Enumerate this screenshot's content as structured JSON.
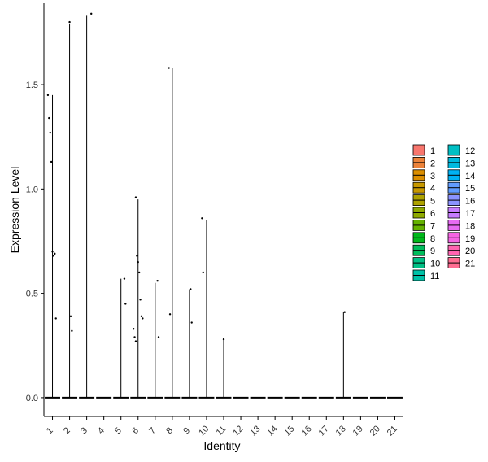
{
  "chart_data": {
    "type": "violin",
    "xlabel": "Identity",
    "ylabel": "Expression Level",
    "categories": [
      "1",
      "2",
      "3",
      "4",
      "5",
      "6",
      "7",
      "8",
      "9",
      "10",
      "11",
      "12",
      "13",
      "14",
      "15",
      "16",
      "17",
      "18",
      "19",
      "20",
      "21"
    ],
    "ylim": [
      -0.09,
      1.89
    ],
    "yticks": [
      0.0,
      0.5,
      1.0,
      1.5
    ],
    "ytick_labels": [
      "0.0",
      "0.5",
      "1.0",
      "1.5"
    ],
    "grid": false,
    "legend_position": "right",
    "legend": [
      {
        "label": "1",
        "color": "#F8766D"
      },
      {
        "label": "2",
        "color": "#EC8239"
      },
      {
        "label": "3",
        "color": "#DB8E00"
      },
      {
        "label": "4",
        "color": "#C79800"
      },
      {
        "label": "5",
        "color": "#AEA200"
      },
      {
        "label": "6",
        "color": "#8FAA00"
      },
      {
        "label": "7",
        "color": "#64B200"
      },
      {
        "label": "8",
        "color": "#00B81B"
      },
      {
        "label": "9",
        "color": "#00BD5C"
      },
      {
        "label": "10",
        "color": "#00C085"
      },
      {
        "label": "11",
        "color": "#00C1A7"
      },
      {
        "label": "12",
        "color": "#00BFC4"
      },
      {
        "label": "13",
        "color": "#00BADE"
      },
      {
        "label": "14",
        "color": "#00B2F3"
      },
      {
        "label": "15",
        "color": "#619CFF"
      },
      {
        "label": "16",
        "color": "#8B93FF"
      },
      {
        "label": "17",
        "color": "#C77CFF"
      },
      {
        "label": "18",
        "color": "#E76BF3"
      },
      {
        "label": "19",
        "color": "#F564E3"
      },
      {
        "label": "20",
        "color": "#FF64B0"
      },
      {
        "label": "21",
        "color": "#FF6C91"
      }
    ],
    "series": [
      {
        "category": "1",
        "max": 1.45,
        "points": [
          1.45,
          1.34,
          1.27,
          1.13,
          0.7,
          0.68,
          0.69,
          0.38
        ]
      },
      {
        "category": "2",
        "max": 1.79,
        "points": [
          1.8,
          0.39,
          0.32
        ]
      },
      {
        "category": "3",
        "max": 1.83,
        "points": [
          1.84
        ]
      },
      {
        "category": "4",
        "max": 0,
        "points": []
      },
      {
        "category": "5",
        "max": 0.57,
        "points": [
          0.57,
          0.45
        ]
      },
      {
        "category": "6",
        "max": 0.95,
        "points": [
          0.96,
          0.68,
          0.65,
          0.6,
          0.47,
          0.39,
          0.38,
          0.33,
          0.29,
          0.27
        ]
      },
      {
        "category": "7",
        "max": 0.55,
        "points": [
          0.56,
          0.29
        ]
      },
      {
        "category": "8",
        "max": 1.58,
        "points": [
          1.58,
          0.4
        ]
      },
      {
        "category": "9",
        "max": 0.52,
        "points": [
          0.52,
          0.36
        ]
      },
      {
        "category": "10",
        "max": 0.85,
        "points": [
          0.86,
          0.6
        ]
      },
      {
        "category": "11",
        "max": 0.28,
        "points": [
          0.28
        ]
      },
      {
        "category": "12",
        "max": 0,
        "points": []
      },
      {
        "category": "13",
        "max": 0,
        "points": []
      },
      {
        "category": "14",
        "max": 0,
        "points": []
      },
      {
        "category": "15",
        "max": 0,
        "points": []
      },
      {
        "category": "16",
        "max": 0,
        "points": []
      },
      {
        "category": "17",
        "max": 0,
        "points": []
      },
      {
        "category": "18",
        "max": 0.41,
        "points": [
          0.41
        ]
      },
      {
        "category": "19",
        "max": 0,
        "points": []
      },
      {
        "category": "20",
        "max": 0,
        "points": []
      },
      {
        "category": "21",
        "max": 0,
        "points": []
      }
    ]
  }
}
